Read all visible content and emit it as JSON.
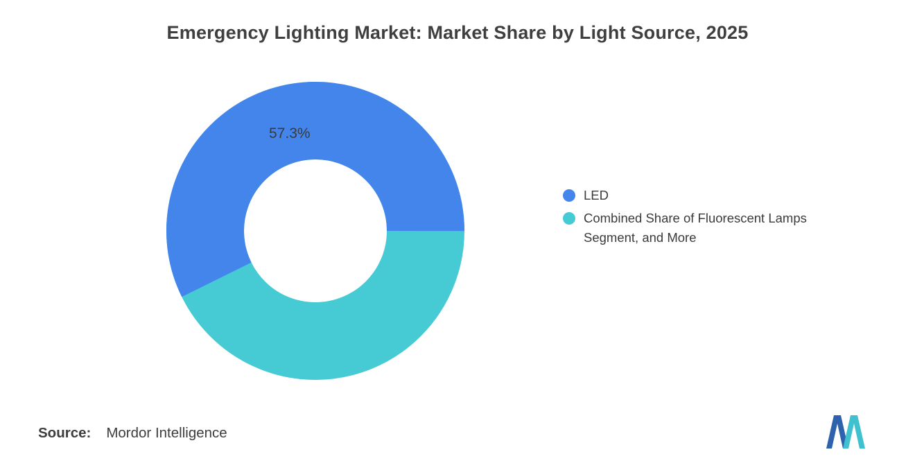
{
  "title": "Emergency Lighting Market: Market Share by Light Source, 2025",
  "chart_data": {
    "type": "pie",
    "donut": true,
    "title": "Emergency Lighting Market: Market Share by Light Source, 2025",
    "legend_position": "right",
    "segments": [
      {
        "label": "LED",
        "value": 57.3,
        "data_label": "57.3%",
        "color": "#4485EC"
      },
      {
        "label": "Combined Share of Fluorescent Lamps Segment, and More",
        "value": 42.7,
        "data_label": "",
        "color": "#46CBD4"
      }
    ]
  },
  "legend": {
    "items": [
      {
        "label": "LED",
        "color": "#4485EC"
      },
      {
        "label": "Combined Share of Fluorescent Lamps Segment, and More",
        "color": "#46CBD4"
      }
    ]
  },
  "source": {
    "label": "Source:",
    "value": "Mordor Intelligence"
  },
  "logo": {
    "name": "mordor-intelligence-logo",
    "blue": "#2E62AC",
    "teal": "#3FC1CF"
  }
}
